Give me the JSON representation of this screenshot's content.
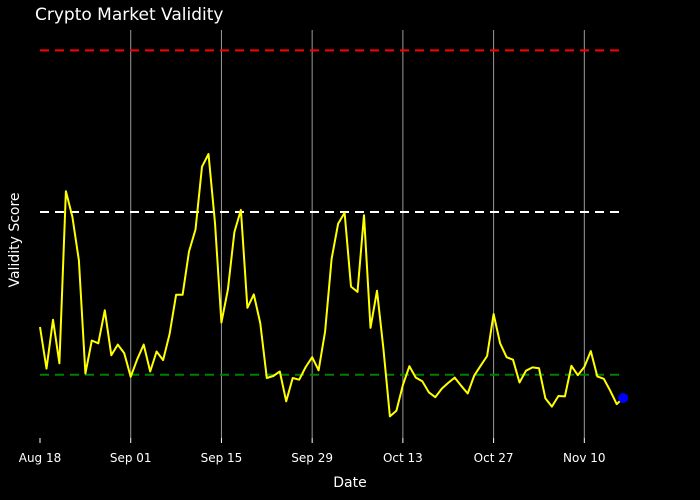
{
  "chart_data": {
    "type": "line",
    "title": "Crypto Market Validity",
    "xlabel": "Date",
    "ylabel": "Validity Score",
    "x_tick_labels": [
      "Aug 18",
      "Sep 01",
      "Sep 15",
      "Sep 29",
      "Oct 13",
      "Oct 27",
      "Nov 10"
    ],
    "x_start": "Aug 18",
    "y_tick_labels_visible": false,
    "ylim": [
      0,
      100
    ],
    "grid": {
      "x": true,
      "y": false
    },
    "reference_lines": [
      {
        "y": 95.0,
        "color": "#ff0000",
        "style": "dashed"
      },
      {
        "y": 55.4,
        "color": "#ffffff",
        "style": "dashed"
      },
      {
        "y": 15.5,
        "color": "#008000",
        "style": "dashed"
      }
    ],
    "series": [
      {
        "color": "#ffff00",
        "values": [
          27.2,
          17.0,
          29.0,
          18.3,
          60.5,
          54.2,
          43.5,
          15.8,
          23.9,
          23.2,
          31.3,
          20.3,
          22.9,
          20.8,
          15.0,
          19.3,
          22.9,
          16.3,
          21.2,
          19.1,
          25.5,
          35.1,
          35.1,
          45.7,
          51.1,
          66.5,
          69.6,
          52.7,
          28.3,
          36.4,
          50.5,
          55.9,
          31.9,
          35.2,
          28.1,
          14.7,
          15.2,
          16.3,
          9.0,
          14.7,
          14.3,
          17.4,
          19.8,
          16.6,
          26.1,
          43.9,
          52.5,
          55.2,
          37.1,
          35.8,
          54.6,
          27.0,
          36.1,
          21.9,
          5.3,
          6.7,
          13.0,
          17.6,
          14.8,
          13.9,
          11.2,
          10.0,
          12.1,
          13.5,
          14.8,
          12.8,
          10.9,
          15.3,
          17.7,
          20.1,
          30.4,
          23.2,
          19.8,
          19.2,
          13.6,
          16.5,
          17.3,
          17.1,
          9.7,
          7.7,
          10.3,
          10.2,
          17.7,
          15.4,
          17.4,
          21.3,
          15.1,
          14.5,
          11.6,
          8.3,
          9.8
        ]
      }
    ],
    "last_point_marker": {
      "color": "#0000ff"
    }
  }
}
